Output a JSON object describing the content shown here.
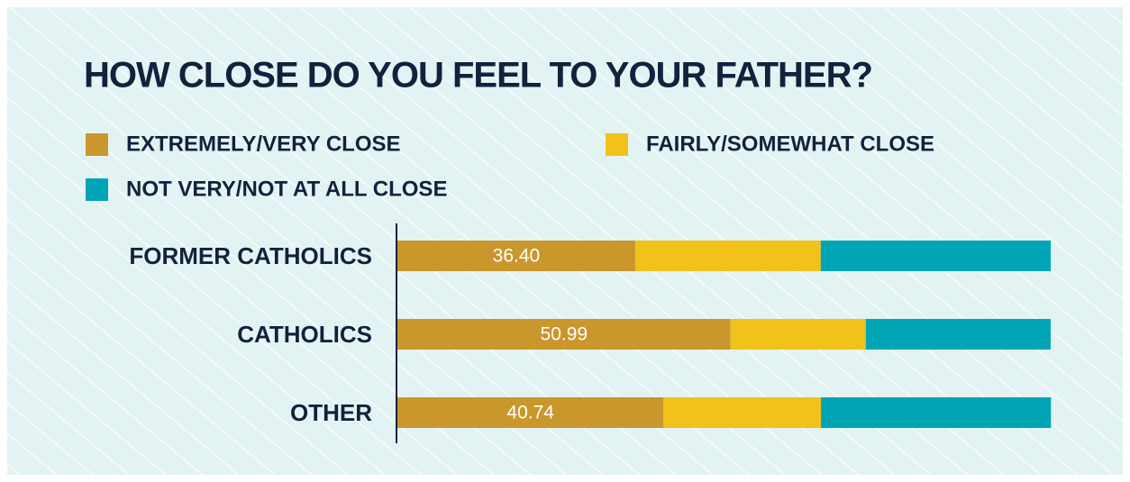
{
  "chart_data": {
    "type": "stacked_bar_horizontal",
    "title": "HOW CLOSE DO YOU FEEL TO YOUR FATHER?",
    "categories": [
      "FORMER CATHOLICS",
      "CATHOLICS",
      "OTHER"
    ],
    "series": [
      {
        "name": "EXTREMELY/VERY CLOSE",
        "color": "#c9972b",
        "values": [
          36.4,
          50.99,
          40.74
        ],
        "value_labels": [
          "36.40",
          "50.99",
          "40.74"
        ]
      },
      {
        "name": "FAIRLY/SOMEWHAT CLOSE",
        "color": "#f2c21a",
        "values": [
          28.4,
          20.7,
          24.1
        ]
      },
      {
        "name": "NOT VERY/NOT AT ALL CLOSE",
        "color": "#00a5b5",
        "values": [
          35.2,
          28.3,
          35.2
        ]
      }
    ],
    "xlim": [
      0,
      100
    ]
  }
}
